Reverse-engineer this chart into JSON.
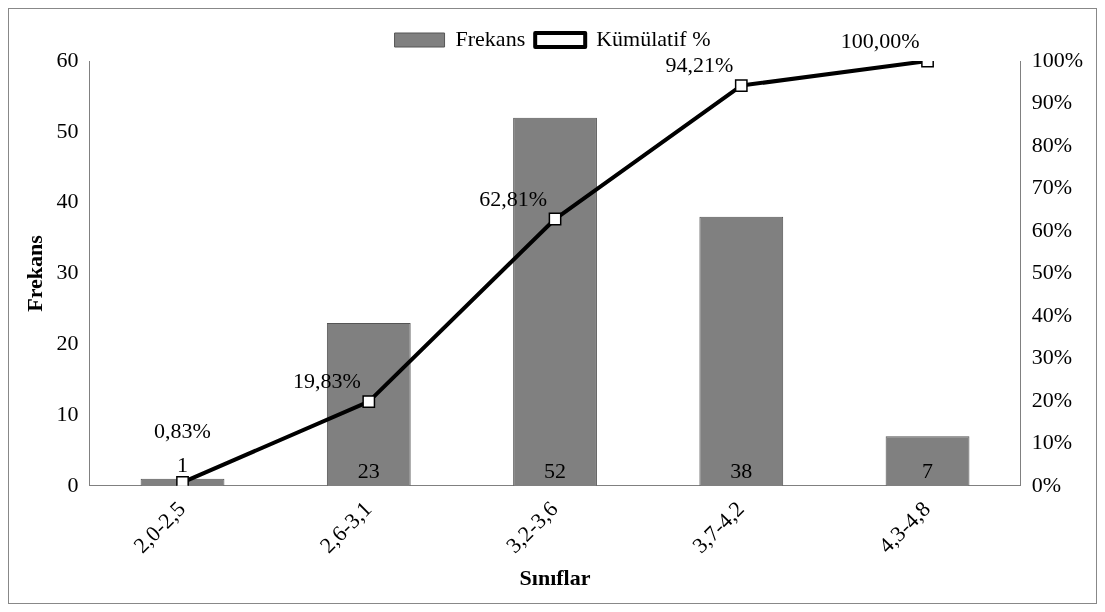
{
  "chart_data": {
    "type": "bar",
    "xlabel": "Sınıflar",
    "ylabel": "Frekans",
    "categories": [
      "2,0-2,5",
      "2,6-3,1",
      "3,2-3,6",
      "3,7-4,2",
      "4,3-4,8"
    ],
    "series": [
      {
        "name": "Frekans",
        "color": "#808080",
        "values": [
          1,
          23,
          52,
          38,
          7
        ],
        "value_labels": [
          "1",
          "23",
          "52",
          "38",
          "7"
        ]
      },
      {
        "name": "Kümülatif %",
        "type": "line",
        "axis": "y2",
        "color": "#000000",
        "marker": "square",
        "values": [
          0.83,
          19.83,
          62.81,
          94.21,
          100
        ],
        "value_labels": [
          "0,83%",
          "19,83%",
          "62,81%",
          "94,21%",
          "100,00%"
        ]
      }
    ],
    "ylim": [
      0,
      60
    ],
    "yticks": [
      0,
      10,
      20,
      30,
      40,
      50,
      60
    ],
    "y2lim": [
      0,
      100
    ],
    "y2ticks": [
      {
        "value": 0,
        "label": "0%"
      },
      {
        "value": 10,
        "label": "10%"
      },
      {
        "value": 20,
        "label": "20%"
      },
      {
        "value": 30,
        "label": "30%"
      },
      {
        "value": 40,
        "label": "40%"
      },
      {
        "value": 50,
        "label": "50%"
      },
      {
        "value": 60,
        "label": "60%"
      },
      {
        "value": 70,
        "label": "70%"
      },
      {
        "value": 80,
        "label": "80%"
      },
      {
        "value": 90,
        "label": "90%"
      },
      {
        "value": 100,
        "label": "100%"
      }
    ],
    "legend": "top",
    "grid": false
  }
}
